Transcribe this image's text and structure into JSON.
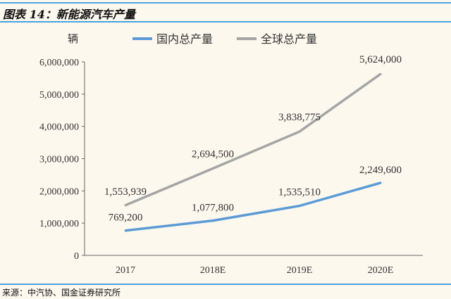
{
  "header": {
    "title": "图表 14：新能源汽车产量"
  },
  "footer": {
    "source": "来源：中汽协、国金证券研究所"
  },
  "colors": {
    "domestic": "#5b9bd5",
    "global": "#a5a5a5",
    "rule": "#4aa3df",
    "background": "#fdf8ee"
  },
  "chart_data": {
    "type": "line",
    "title": "",
    "ylabel": "辆",
    "xlabel": "",
    "categories": [
      "2017",
      "2018E",
      "2019E",
      "2020E"
    ],
    "ylim": [
      0,
      6000000
    ],
    "yticks": [
      0,
      1000000,
      2000000,
      3000000,
      4000000,
      5000000,
      6000000
    ],
    "ytick_labels": [
      "0",
      "1,000,000",
      "2,000,000",
      "3,000,000",
      "4,000,000",
      "5,000,000",
      "6,000,000"
    ],
    "legend": "top",
    "grid": false,
    "series": [
      {
        "name": "国内总产量",
        "values": [
          769200,
          1077800,
          1535510,
          2249600
        ],
        "labels": [
          "769,200",
          "1,077,800",
          "1,535,510",
          "2,249,600"
        ]
      },
      {
        "name": "全球总产量",
        "values": [
          1553939,
          2694500,
          3838775,
          5624000
        ],
        "labels": [
          "1,553,939",
          "2,694,500",
          "3,838,775",
          "5,624,000"
        ]
      }
    ]
  }
}
